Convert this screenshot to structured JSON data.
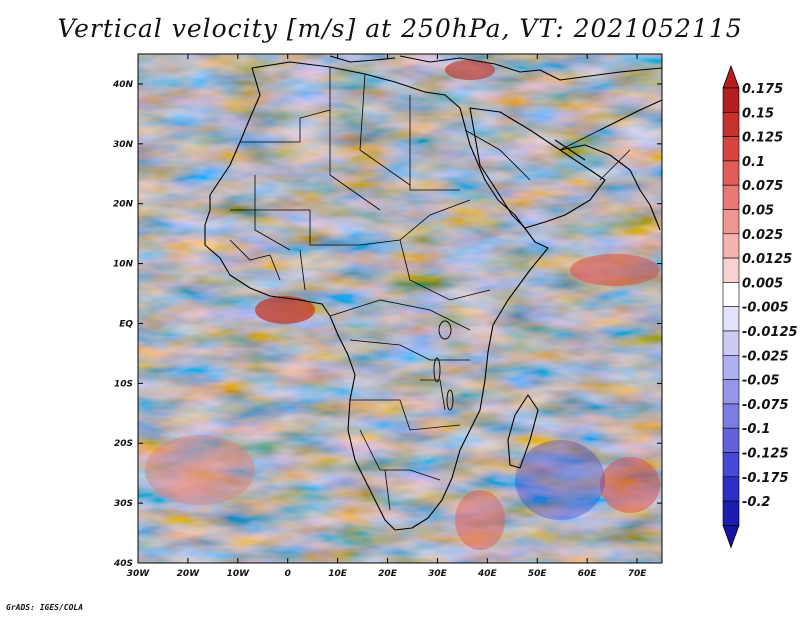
{
  "title": "Vertical velocity [m/s] at 250hPa, VT: 2021052115",
  "credit": "GrADS: IGES/COLA",
  "map": {
    "lon_ticks": [
      "30W",
      "20W",
      "10W",
      "0",
      "10E",
      "20E",
      "30E",
      "40E",
      "50E",
      "60E",
      "70E"
    ],
    "lat_ticks": [
      "40N",
      "30N",
      "20N",
      "10N",
      "EQ",
      "10S",
      "20S",
      "30S",
      "40S"
    ],
    "lon_range": [
      -30,
      75
    ],
    "lat_range": [
      -40,
      45
    ],
    "field_colors": {
      "ascent": "#d0302a",
      "descent": "#4b46d6",
      "neutral": "#ffffff"
    }
  },
  "colorbar": {
    "labels": [
      "0.175",
      "0.15",
      "0.125",
      "0.1",
      "0.075",
      "0.05",
      "0.025",
      "0.0125",
      "0.005",
      "-0.005",
      "-0.0125",
      "-0.025",
      "-0.05",
      "-0.075",
      "-0.1",
      "-0.125",
      "-0.175",
      "-0.2"
    ],
    "colors": [
      "#b41e1e",
      "#c8302c",
      "#d84440",
      "#e25c58",
      "#e87874",
      "#ee9692",
      "#f4b4b0",
      "#f8d2d0",
      "#ffffff",
      "#e2e2fa",
      "#cacaf4",
      "#b0b0f0",
      "#9696ea",
      "#7c7ce4",
      "#6262de",
      "#4848d6",
      "#2e2ec8",
      "#1c1cb0"
    ]
  }
}
